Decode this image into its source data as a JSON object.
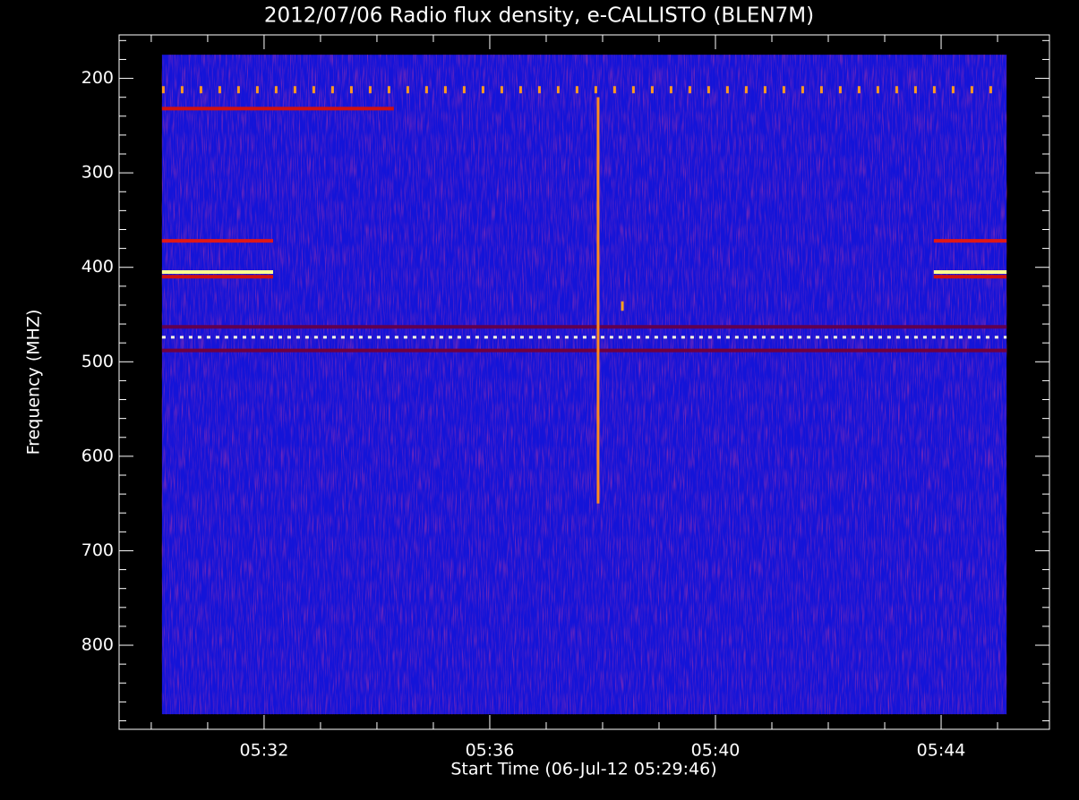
{
  "chart_data": {
    "type": "spectrogram",
    "title": "2012/07/06  Radio flux density, e-CALLISTO (BLEN7M)",
    "x_label": "Start Time (06-Jul-12 05:29:46)",
    "y_label": "Frequency (MHZ)",
    "xlim": [
      29.43,
      45.92
    ],
    "ylim": [
      154,
      889
    ],
    "y_inverted": true,
    "xticks": [
      {
        "value": 32,
        "label": "05:32"
      },
      {
        "value": 36,
        "label": "05:36"
      },
      {
        "value": 40,
        "label": "05:40"
      },
      {
        "value": 44,
        "label": "05:44"
      }
    ],
    "xminorticks": [
      30,
      31,
      33,
      34,
      35,
      37,
      38,
      39,
      41,
      42,
      43,
      45
    ],
    "yticks": [
      200,
      300,
      400,
      500,
      600,
      700,
      800
    ],
    "yminorticks": [
      160,
      180,
      220,
      240,
      260,
      280,
      320,
      340,
      360,
      380,
      420,
      440,
      460,
      480,
      520,
      540,
      560,
      580,
      620,
      640,
      660,
      680,
      720,
      740,
      760,
      780,
      820,
      840,
      860,
      880
    ],
    "image_time": [
      30.19,
      45.16
    ],
    "image_freq": [
      175,
      873
    ],
    "background_color": "#1414d8",
    "bands": [
      {
        "freq": 212,
        "start": 30.19,
        "end": 45.16,
        "color": "#ff9a20",
        "style": "dotted"
      },
      {
        "freq": 232,
        "start": 30.19,
        "end": 34.3,
        "color": "#d01010",
        "style": "solid"
      },
      {
        "freq": 372,
        "start": 30.19,
        "end": 32.16,
        "color": "#e01818",
        "style": "solid"
      },
      {
        "freq": 405,
        "start": 30.19,
        "end": 32.16,
        "color": "#ffff90",
        "style": "solid"
      },
      {
        "freq": 410,
        "start": 30.19,
        "end": 32.16,
        "color": "#d01010",
        "style": "solid"
      },
      {
        "freq": 372,
        "start": 43.87,
        "end": 45.16,
        "color": "#e01818",
        "style": "solid"
      },
      {
        "freq": 405,
        "start": 43.87,
        "end": 45.16,
        "color": "#ffff90",
        "style": "solid"
      },
      {
        "freq": 410,
        "start": 43.87,
        "end": 45.16,
        "color": "#d01010",
        "style": "solid"
      },
      {
        "freq": 463,
        "start": 30.19,
        "end": 45.16,
        "color": "#600050",
        "style": "solid"
      },
      {
        "freq": 474,
        "start": 30.19,
        "end": 45.16,
        "color": "#ffffe0",
        "style": "dashed"
      },
      {
        "freq": 488,
        "start": 30.19,
        "end": 45.16,
        "color": "#700040",
        "style": "solid"
      }
    ],
    "bursts": [
      {
        "time": 37.92,
        "freq": [
          220,
          650
        ],
        "color": "#ff8a20"
      },
      {
        "time": 38.35,
        "freq": [
          436,
          446
        ],
        "color": "#ffa020"
      }
    ]
  }
}
